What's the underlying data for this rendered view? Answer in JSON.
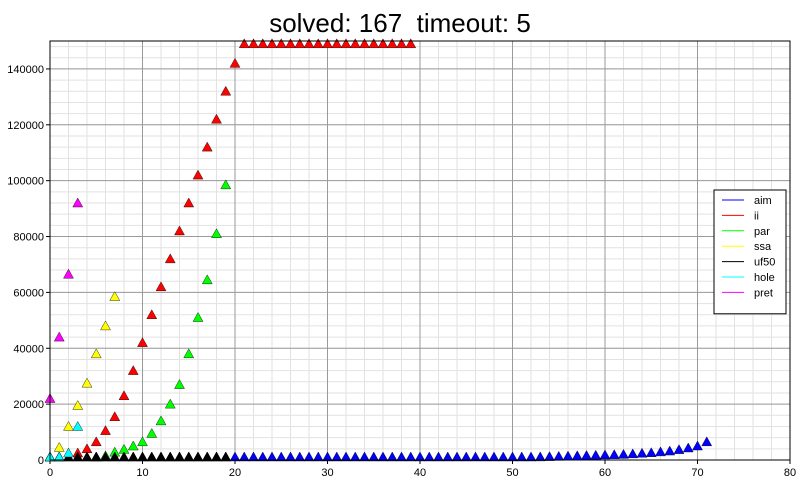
{
  "chart_data": {
    "type": "scatter",
    "title": "solved: 167  timeout: 5",
    "xlabel": "",
    "ylabel": "",
    "xlim": [
      0,
      80
    ],
    "ylim": [
      0,
      150000
    ],
    "grid": true,
    "legend_placement": "right",
    "x_ticks": [
      0,
      10,
      20,
      30,
      40,
      50,
      60,
      70,
      80
    ],
    "y_ticks": [
      0,
      20000,
      40000,
      60000,
      80000,
      100000,
      120000,
      140000
    ],
    "series": [
      {
        "name": "aim",
        "color": "#0000ff",
        "x": [
          0,
          1,
          2,
          3,
          4,
          5,
          6,
          7,
          8,
          9,
          10,
          11,
          12,
          13,
          14,
          15,
          16,
          17,
          18,
          19,
          20,
          21,
          22,
          23,
          24,
          25,
          26,
          27,
          28,
          29,
          30,
          31,
          32,
          33,
          34,
          35,
          36,
          37,
          38,
          39,
          40,
          41,
          42,
          43,
          44,
          45,
          46,
          47,
          48,
          49,
          50,
          51,
          52,
          53,
          54,
          55,
          56,
          57,
          58,
          59,
          60,
          61,
          62,
          63,
          64,
          65,
          66,
          67,
          68,
          69,
          70,
          71
        ],
        "y": [
          100,
          100,
          100,
          100,
          100,
          100,
          100,
          100,
          100,
          100,
          100,
          100,
          100,
          100,
          100,
          100,
          100,
          100,
          150,
          150,
          200,
          200,
          200,
          200,
          200,
          250,
          250,
          250,
          250,
          300,
          300,
          300,
          350,
          350,
          350,
          400,
          400,
          450,
          450,
          500,
          550,
          550,
          600,
          650,
          700,
          700,
          750,
          800,
          850,
          900,
          950,
          1000,
          1050,
          1100,
          1200,
          1300,
          1400,
          1500,
          1600,
          1700,
          1800,
          1900,
          2000,
          2200,
          2400,
          2600,
          2900,
          3200,
          3700,
          4300,
          5000,
          6500
        ]
      },
      {
        "name": "ii",
        "color": "#ff0000",
        "x": [
          3,
          4,
          5,
          6,
          7,
          8,
          9,
          10,
          11,
          12,
          13,
          14,
          15,
          16,
          17,
          18,
          19,
          20,
          21,
          22,
          23,
          24,
          25,
          26,
          27,
          28,
          29,
          30,
          31,
          32,
          33,
          34,
          35,
          36,
          37,
          38,
          39
        ],
        "y": [
          2500,
          4000,
          6500,
          10500,
          15500,
          23000,
          32000,
          42000,
          52000,
          62000,
          72000,
          82000,
          92000,
          102000,
          112000,
          122000,
          132000,
          142000,
          149000,
          149000,
          149000,
          149000,
          149000,
          149000,
          149000,
          149000,
          149000,
          149000,
          149000,
          149000,
          149000,
          149000,
          149000,
          149000,
          149000,
          149000,
          149000
        ]
      },
      {
        "name": "par",
        "color": "#00ff00",
        "x": [
          5,
          6,
          7,
          8,
          9,
          10,
          11,
          12,
          13,
          14,
          15,
          16,
          17,
          18,
          19
        ],
        "y": [
          600,
          1500,
          2800,
          3800,
          5000,
          6500,
          9500,
          14000,
          20000,
          27000,
          38000,
          51000,
          64500,
          81000,
          98500
        ]
      },
      {
        "name": "ssa",
        "color": "#ffff00",
        "x": [
          1,
          2,
          3,
          4,
          5,
          6,
          7
        ],
        "y": [
          4500,
          12000,
          19500,
          27500,
          38000,
          48000,
          58500
        ]
      },
      {
        "name": "uf50",
        "color": "#000000",
        "x": [
          0,
          1,
          2,
          3,
          4,
          5,
          6,
          7,
          8,
          9,
          10,
          11,
          12,
          13,
          14,
          15,
          16,
          17,
          18,
          19
        ],
        "y": [
          150,
          150,
          150,
          200,
          250,
          300,
          300,
          350,
          400,
          400,
          450,
          400,
          350,
          300,
          300,
          250,
          250,
          200,
          200,
          150
        ]
      },
      {
        "name": "hole",
        "color": "#00ffff",
        "x": [
          0,
          1,
          2,
          3
        ],
        "y": [
          0,
          1000,
          2500,
          12000
        ]
      },
      {
        "name": "pret",
        "color": "#ff00ff",
        "x": [
          0,
          1,
          2,
          3
        ],
        "y": [
          22000,
          44000,
          66500,
          92000
        ]
      }
    ]
  }
}
